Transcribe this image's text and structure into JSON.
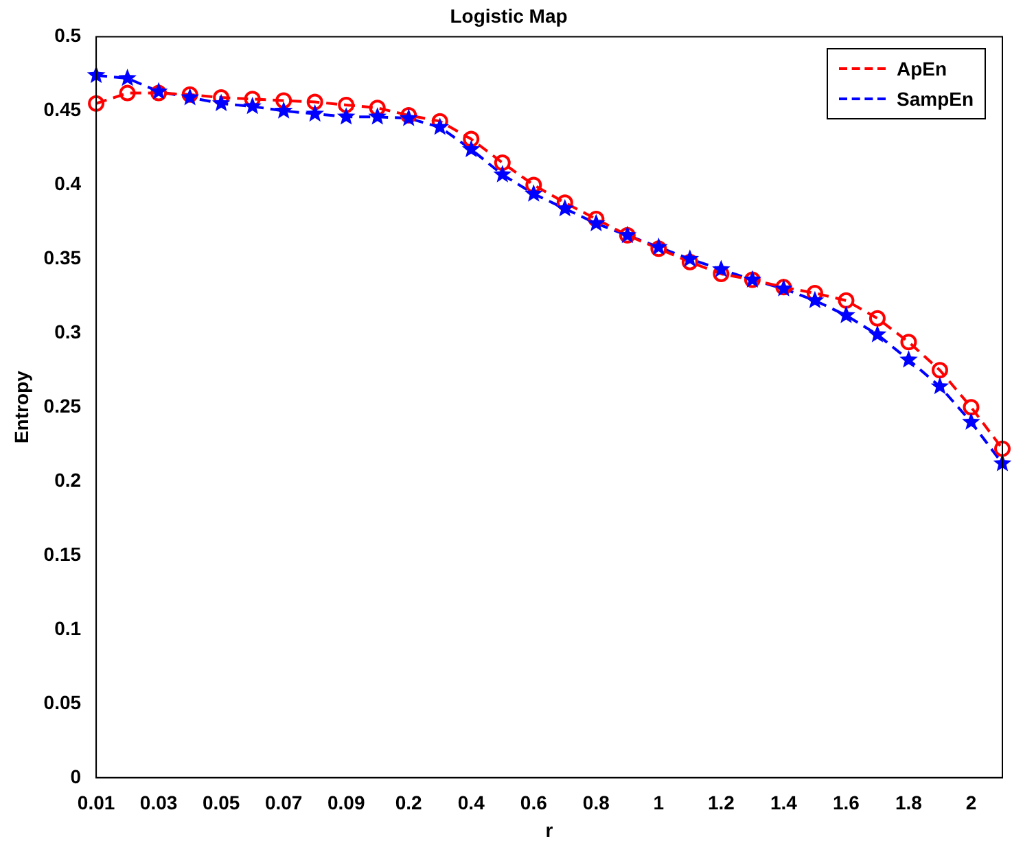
{
  "chart_data": {
    "type": "line",
    "title": "Logistic Map",
    "xlabel": "r",
    "ylabel": "Entropy",
    "categories": [
      "0.01",
      null,
      "0.03",
      null,
      "0.05",
      null,
      "0.07",
      null,
      "0.09",
      null,
      "0.2",
      null,
      "0.4",
      null,
      "0.6",
      null,
      "0.8",
      null,
      "1",
      null,
      "1.2",
      null,
      "1.4",
      null,
      "1.6",
      null,
      "1.8",
      null,
      "2",
      null
    ],
    "series": [
      {
        "name": "ApEn",
        "color": "#ff0000",
        "marker": "circle",
        "values": [
          0.455,
          0.462,
          0.462,
          0.461,
          0.459,
          0.458,
          0.457,
          0.456,
          0.454,
          0.452,
          0.447,
          0.443,
          0.431,
          0.415,
          0.4,
          0.388,
          0.377,
          0.366,
          0.357,
          0.348,
          0.34,
          0.336,
          0.331,
          0.327,
          0.322,
          0.31,
          0.294,
          0.275,
          0.25,
          0.222
        ]
      },
      {
        "name": "SampEn",
        "color": "#0000ff",
        "marker": "star",
        "values": [
          0.474,
          0.472,
          0.463,
          0.459,
          0.455,
          0.453,
          0.45,
          0.448,
          0.446,
          0.446,
          0.445,
          0.439,
          0.424,
          0.407,
          0.394,
          0.384,
          0.374,
          0.366,
          0.358,
          0.35,
          0.343,
          0.336,
          0.33,
          0.322,
          0.312,
          0.299,
          0.282,
          0.264,
          0.24,
          0.212
        ]
      }
    ],
    "ylim": [
      0,
      0.5
    ],
    "yticks": [
      0,
      0.05,
      0.1,
      0.15,
      0.2,
      0.25,
      0.3,
      0.35,
      0.4,
      0.45,
      0.5
    ],
    "grid": false,
    "legend": "top right",
    "line_style": "dashed"
  }
}
